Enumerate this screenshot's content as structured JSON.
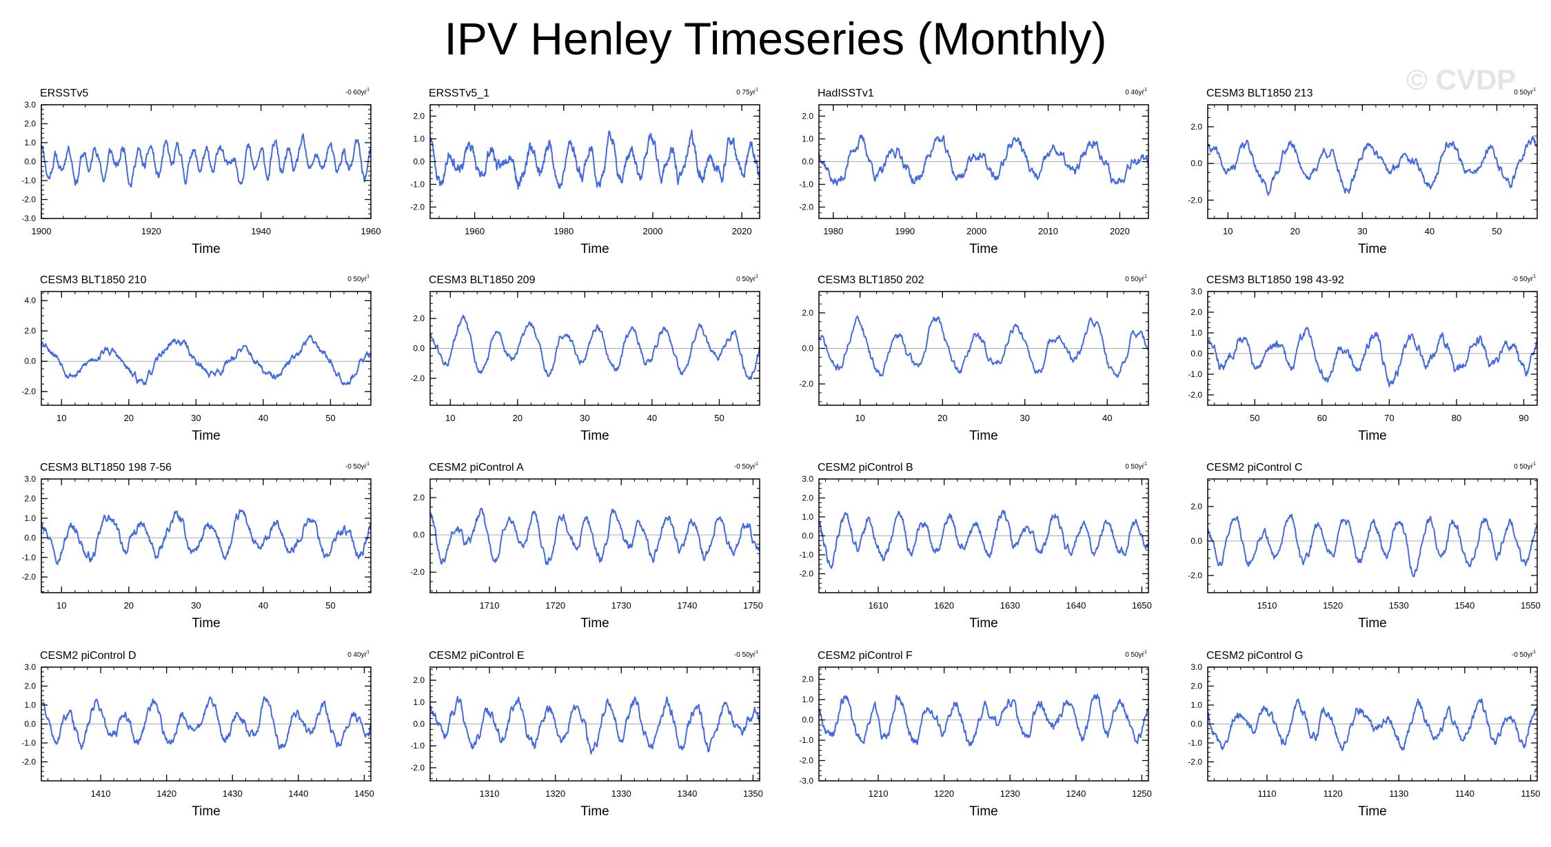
{
  "title": "IPV Henley Timeseries (Monthly)",
  "watermark": "© CVDP",
  "colors": {
    "line": "#4169e1",
    "zero_line": "#aaaaaa",
    "axis": "#000000"
  },
  "chart_data": [
    {
      "type": "line",
      "title": "ERSSTv5",
      "trend": "-0 60yr",
      "trend_sup": "-1",
      "xlabel": "Time",
      "xlim": [
        1900,
        1960
      ],
      "xticks": [
        1900,
        1920,
        1940,
        1960
      ],
      "ylim": [
        -3,
        3
      ],
      "yticks": [
        3,
        2,
        1,
        0,
        -1,
        -2,
        -3
      ],
      "ytick_labels": [
        "3.0",
        "2.0",
        "1.0",
        "0.0",
        "-1.0",
        "-2.0",
        "-3.0"
      ],
      "seed": 11,
      "amplitude": 0.75,
      "period": 2.5
    },
    {
      "type": "line",
      "title": "ERSSTv5_1",
      "trend": "0 75yr",
      "trend_sup": "-1",
      "xlabel": "Time",
      "xlim": [
        1950,
        2024
      ],
      "xticks": [
        1960,
        1980,
        2000,
        2020
      ],
      "ylim": [
        -2.5,
        2.5
      ],
      "yticks": [
        2,
        1,
        0,
        -1,
        -2
      ],
      "ytick_labels": [
        "2.0",
        "1.0",
        "0.0",
        "-1.0",
        "-2.0"
      ],
      "seed": 23,
      "amplitude": 0.8,
      "period": 4.5
    },
    {
      "type": "line",
      "title": "HadISSTv1",
      "trend": "0 46yr",
      "trend_sup": "-1",
      "xlabel": "Time",
      "xlim": [
        1978,
        2024
      ],
      "xticks": [
        1980,
        1990,
        2000,
        2010,
        2020
      ],
      "ylim": [
        -2.5,
        2.5
      ],
      "yticks": [
        2,
        1,
        0,
        -1,
        -2
      ],
      "ytick_labels": [
        "2.0",
        "1.0",
        "0.0",
        "-1.0",
        "-2.0"
      ],
      "seed": 37,
      "amplitude": 0.85,
      "period": 5.5
    },
    {
      "type": "line",
      "title": "CESM3 BLT1850 213",
      "trend": "0 50yr",
      "trend_sup": "-1",
      "xlabel": "Time",
      "xlim": [
        7,
        56
      ],
      "xticks": [
        10,
        20,
        30,
        40,
        50
      ],
      "ylim": [
        -3,
        3.2
      ],
      "yticks": [
        2,
        0,
        -2
      ],
      "ytick_labels": [
        "2.0",
        "0.0",
        "-2.0"
      ],
      "seed": 41,
      "amplitude": 1.1,
      "period": 6
    },
    {
      "type": "line",
      "title": "CESM3 BLT1850 210",
      "trend": "0 50yr",
      "trend_sup": "-1",
      "xlabel": "Time",
      "xlim": [
        7,
        56
      ],
      "xticks": [
        10,
        20,
        30,
        40,
        50
      ],
      "ylim": [
        -2.9,
        4.6
      ],
      "yticks": [
        4,
        2,
        0,
        -2
      ],
      "ytick_labels": [
        "4.0",
        "2.0",
        "0.0",
        "-2.0"
      ],
      "seed": 53,
      "amplitude": 1.2,
      "period": 10
    },
    {
      "type": "line",
      "title": "CESM3 BLT1850 209",
      "trend": "0 50yr",
      "trend_sup": "-1",
      "xlabel": "Time",
      "xlim": [
        7,
        56
      ],
      "xticks": [
        10,
        20,
        30,
        40,
        50
      ],
      "ylim": [
        -3.8,
        3.8
      ],
      "yticks": [
        2,
        0,
        -2
      ],
      "ytick_labels": [
        "2.0",
        "0.0",
        "-2.0"
      ],
      "seed": 61,
      "amplitude": 1.5,
      "period": 5
    },
    {
      "type": "line",
      "title": "CESM3 BLT1850 202",
      "trend": "0 50yr",
      "trend_sup": "-1",
      "xlabel": "Time",
      "xlim": [
        5,
        45
      ],
      "xticks": [
        10,
        20,
        30,
        40
      ],
      "ylim": [
        -3.2,
        3.2
      ],
      "yticks": [
        2,
        0,
        -2
      ],
      "ytick_labels": [
        "2.0",
        "0.0",
        "-2.0"
      ],
      "seed": 71,
      "amplitude": 1.3,
      "period": 4.8
    },
    {
      "type": "line",
      "title": "CESM3 BLT1850 198 43-92",
      "trend": "-0 50yr",
      "trend_sup": "-1",
      "xlabel": "Time",
      "xlim": [
        43,
        92
      ],
      "xticks": [
        50,
        60,
        70,
        80,
        90
      ],
      "ylim": [
        -2.5,
        3
      ],
      "yticks": [
        3,
        2,
        1,
        0,
        -1,
        -2
      ],
      "ytick_labels": [
        "3.0",
        "2.0",
        "1.0",
        "0.0",
        "-1.0",
        "-2.0"
      ],
      "seed": 83,
      "amplitude": 0.9,
      "period": 5
    },
    {
      "type": "line",
      "title": "CESM3 BLT1850 198 7-56",
      "trend": "-0 50yr",
      "trend_sup": "-1",
      "xlabel": "Time",
      "xlim": [
        7,
        56
      ],
      "xticks": [
        10,
        20,
        30,
        40,
        50
      ],
      "ylim": [
        -2.8,
        3
      ],
      "yticks": [
        3,
        2,
        1,
        0,
        -1,
        -2
      ],
      "ytick_labels": [
        "3.0",
        "2.0",
        "1.0",
        "0.0",
        "-1.0",
        "-2.0"
      ],
      "seed": 97,
      "amplitude": 0.9,
      "period": 5
    },
    {
      "type": "line",
      "title": "CESM2 piControl A",
      "trend": "-0 50yr",
      "trend_sup": "-1",
      "xlabel": "Time",
      "xlim": [
        1701,
        1751
      ],
      "xticks": [
        1710,
        1720,
        1730,
        1740,
        1750
      ],
      "ylim": [
        -3.1,
        3
      ],
      "yticks": [
        2,
        0,
        -2
      ],
      "ytick_labels": [
        "2.0",
        "0.0",
        "-2.0"
      ],
      "seed": 101,
      "amplitude": 1.1,
      "period": 4
    },
    {
      "type": "line",
      "title": "CESM2 piControl B",
      "trend": "0 50yr",
      "trend_sup": "-1",
      "xlabel": "Time",
      "xlim": [
        1601,
        1651
      ],
      "xticks": [
        1610,
        1620,
        1630,
        1640,
        1650
      ],
      "ylim": [
        -3,
        3
      ],
      "yticks": [
        3,
        2,
        1,
        0,
        -1,
        -2
      ],
      "ytick_labels": [
        "3.0",
        "2.0",
        "1.0",
        "0.0",
        "-1.0",
        "-2.0"
      ],
      "seed": 113,
      "amplitude": 0.95,
      "period": 4
    },
    {
      "type": "line",
      "title": "CESM2 piControl C",
      "trend": "0 50yr",
      "trend_sup": "-1",
      "xlabel": "Time",
      "xlim": [
        1501,
        1551
      ],
      "xticks": [
        1510,
        1520,
        1530,
        1540,
        1550
      ],
      "ylim": [
        -3,
        3.6
      ],
      "yticks": [
        2,
        0,
        -2
      ],
      "ytick_labels": [
        "2.0",
        "0.0",
        "-2.0"
      ],
      "seed": 127,
      "amplitude": 1.3,
      "period": 4.2
    },
    {
      "type": "line",
      "title": "CESM2 piControl D",
      "trend": "0 40yr",
      "trend_sup": "-1",
      "xlabel": "Time",
      "xlim": [
        1401,
        1451
      ],
      "xticks": [
        1410,
        1420,
        1430,
        1440,
        1450
      ],
      "ylim": [
        -3,
        3
      ],
      "yticks": [
        3,
        2,
        1,
        0,
        -1,
        -2
      ],
      "ytick_labels": [
        "3.0",
        "2.0",
        "1.0",
        "0.0",
        "-1.0",
        "-2.0"
      ],
      "seed": 131,
      "amplitude": 0.95,
      "period": 4.3
    },
    {
      "type": "line",
      "title": "CESM2 piControl E",
      "trend": "-0 50yr",
      "trend_sup": "-1",
      "xlabel": "Time",
      "xlim": [
        1301,
        1351
      ],
      "xticks": [
        1310,
        1320,
        1330,
        1340,
        1350
      ],
      "ylim": [
        -2.6,
        2.6
      ],
      "yticks": [
        2,
        1,
        0,
        -1,
        -2
      ],
      "ytick_labels": [
        "2.0",
        "1.0",
        "0.0",
        "-1.0",
        "-2.0"
      ],
      "seed": 139,
      "amplitude": 0.95,
      "period": 4.5
    },
    {
      "type": "line",
      "title": "CESM2 piControl F",
      "trend": "0 50yr",
      "trend_sup": "-1",
      "xlabel": "Time",
      "xlim": [
        1201,
        1251
      ],
      "xticks": [
        1210,
        1220,
        1230,
        1240,
        1250
      ],
      "ylim": [
        -3,
        2.6
      ],
      "yticks": [
        2,
        1,
        0,
        -1,
        -2,
        -3
      ],
      "ytick_labels": [
        "2.0",
        "1.0",
        "0.0",
        "-1.0",
        "-2.0",
        "-3.0"
      ],
      "seed": 149,
      "amplitude": 0.95,
      "period": 4.2
    },
    {
      "type": "line",
      "title": "CESM2 piControl G",
      "trend": "-0 50yr",
      "trend_sup": "-1",
      "xlabel": "Time",
      "xlim": [
        1101,
        1151
      ],
      "xticks": [
        1110,
        1120,
        1130,
        1140,
        1150
      ],
      "ylim": [
        -3,
        3
      ],
      "yticks": [
        3,
        2,
        1,
        0,
        -1,
        -2
      ],
      "ytick_labels": [
        "3.0",
        "2.0",
        "1.0",
        "0.0",
        "-1.0",
        "-2.0"
      ],
      "seed": 157,
      "amplitude": 0.9,
      "period": 4.6
    }
  ]
}
